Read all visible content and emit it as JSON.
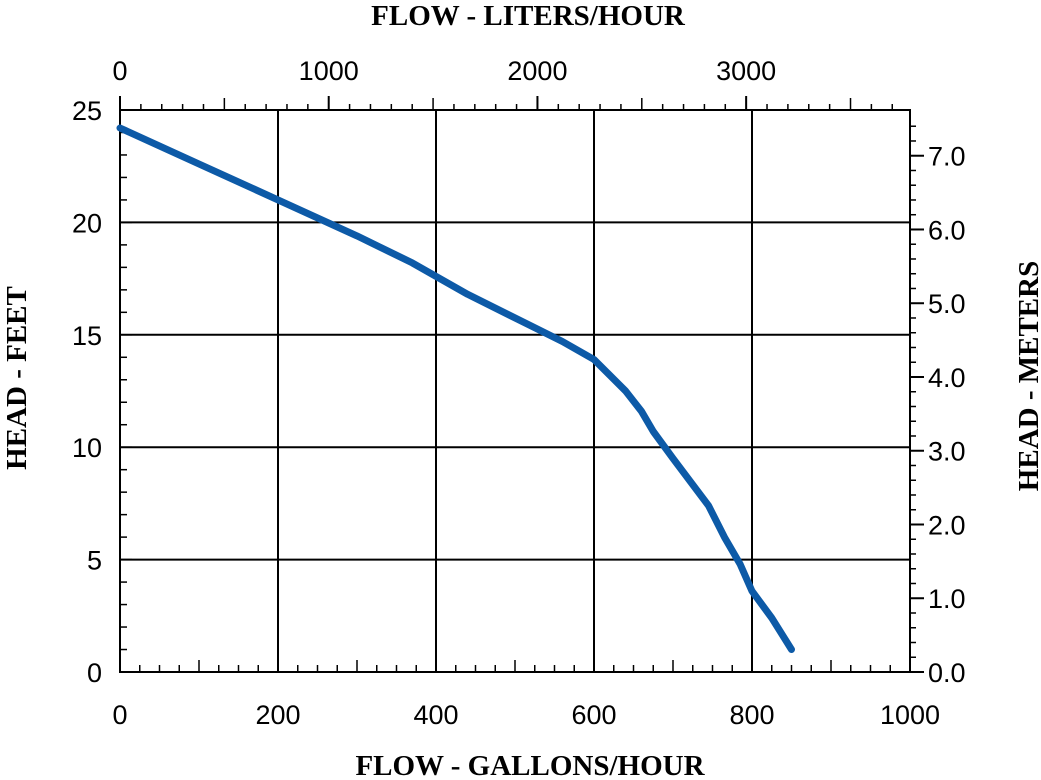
{
  "chart_data": {
    "type": "line",
    "title": "",
    "xlabel": "FLOW - GALLONS/HOUR",
    "x2label": "FLOW - LITERS/HOUR",
    "ylabel": "HEAD - FEET",
    "y2label": "HEAD - METERS",
    "xlim": [
      0,
      1000
    ],
    "ylim": [
      0,
      25
    ],
    "x2lim": [
      0,
      3785
    ],
    "y2lim": [
      0,
      7.62
    ],
    "x_ticks": [
      "0",
      "200",
      "400",
      "600",
      "800",
      "1000"
    ],
    "y_ticks": [
      "0",
      "5",
      "10",
      "15",
      "20",
      "25"
    ],
    "x2_ticks": [
      "0",
      "1000",
      "2000",
      "3000"
    ],
    "y2_ticks": [
      "0.0",
      "1.0",
      "2.0",
      "3.0",
      "4.0",
      "5.0",
      "6.0",
      "7.0"
    ],
    "grid": true,
    "line_color": "#0d5aa7",
    "series": [
      {
        "name": "",
        "x": [
          0,
          100,
          200,
          300,
          370,
          440,
          520,
          560,
          600,
          640,
          660,
          675,
          700,
          745,
          765,
          785,
          800,
          825,
          850
        ],
        "y": [
          24.2,
          22.6,
          21.0,
          19.4,
          18.2,
          16.8,
          15.4,
          14.7,
          13.9,
          12.5,
          11.6,
          10.7,
          9.5,
          7.4,
          6.0,
          4.8,
          3.6,
          2.4,
          1.0
        ]
      }
    ]
  }
}
